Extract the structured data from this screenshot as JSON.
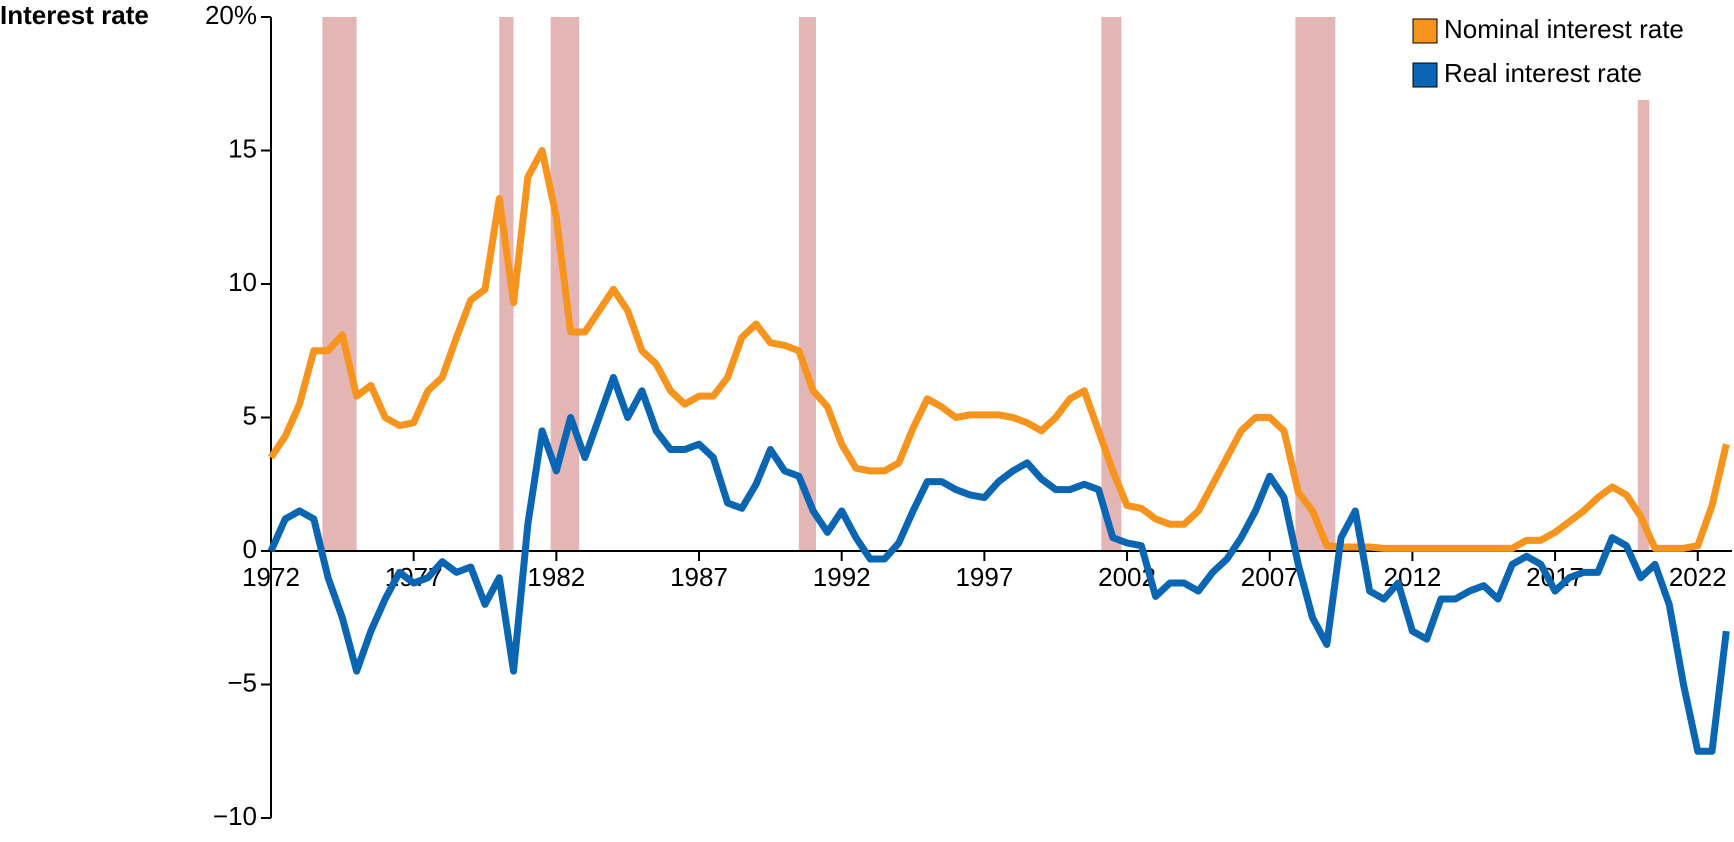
{
  "chart_data": {
    "type": "line",
    "y_label": "Interest rate",
    "x": [
      1972,
      1972.5,
      1973,
      1973.5,
      1974,
      1974.5,
      1975,
      1975.5,
      1976,
      1976.5,
      1977,
      1977.5,
      1978,
      1978.5,
      1979,
      1979.5,
      1980,
      1980.5,
      1981,
      1981.5,
      1982,
      1982.5,
      1983,
      1983.5,
      1984,
      1984.5,
      1985,
      1985.5,
      1986,
      1986.5,
      1987,
      1987.5,
      1988,
      1988.5,
      1989,
      1989.5,
      1990,
      1990.5,
      1991,
      1991.5,
      1992,
      1992.5,
      1993,
      1993.5,
      1994,
      1994.5,
      1995,
      1995.5,
      1996,
      1996.5,
      1997,
      1997.5,
      1998,
      1998.5,
      1999,
      1999.5,
      2000,
      2000.5,
      2001,
      2001.5,
      2002,
      2002.5,
      2003,
      2003.5,
      2004,
      2004.5,
      2005,
      2005.5,
      2006,
      2006.5,
      2007,
      2007.5,
      2008,
      2008.5,
      2009,
      2009.5,
      2010,
      2010.5,
      2011,
      2011.5,
      2012,
      2012.5,
      2013,
      2013.5,
      2014,
      2014.5,
      2015,
      2015.5,
      2016,
      2016.5,
      2017,
      2017.5,
      2018,
      2018.5,
      2019,
      2019.5,
      2020,
      2020.5,
      2021,
      2021.5,
      2022,
      2022.5,
      2023
    ],
    "series": [
      {
        "name": "Nominal interest rate",
        "color": "#f7941d",
        "values": [
          3.5,
          4.3,
          5.5,
          7.5,
          7.5,
          8.1,
          5.8,
          6.2,
          5.0,
          4.7,
          4.8,
          6.0,
          6.5,
          8.0,
          9.4,
          9.8,
          13.2,
          9.3,
          14.0,
          15.0,
          12.5,
          8.2,
          8.2,
          9.0,
          9.8,
          9.0,
          7.5,
          7.0,
          6.0,
          5.5,
          5.8,
          5.8,
          6.5,
          8.0,
          8.5,
          7.8,
          7.7,
          7.5,
          6.0,
          5.4,
          4.0,
          3.1,
          3.0,
          3.0,
          3.3,
          4.6,
          5.7,
          5.4,
          5.0,
          5.1,
          5.1,
          5.1,
          5.0,
          4.8,
          4.5,
          5.0,
          5.7,
          6.0,
          4.5,
          3.0,
          1.7,
          1.6,
          1.2,
          1.0,
          1.0,
          1.5,
          2.5,
          3.5,
          4.5,
          5.0,
          5.0,
          4.5,
          2.2,
          1.5,
          0.2,
          0.15,
          0.15,
          0.15,
          0.1,
          0.1,
          0.1,
          0.1,
          0.1,
          0.1,
          0.1,
          0.1,
          0.1,
          0.1,
          0.4,
          0.4,
          0.7,
          1.1,
          1.5,
          2.0,
          2.4,
          2.1,
          1.3,
          0.1,
          0.1,
          0.1,
          0.2,
          1.7,
          4.0
        ]
      },
      {
        "name": "Real interest rate",
        "color": "#0a66b2",
        "values": [
          0,
          1.2,
          1.5,
          1.2,
          -1.0,
          -2.5,
          -4.5,
          -3.0,
          -1.8,
          -0.8,
          -1.2,
          -1.0,
          -0.4,
          -0.8,
          -0.6,
          -2.0,
          -1.0,
          -4.5,
          1.0,
          4.5,
          3.0,
          5.0,
          3.5,
          5.0,
          6.5,
          5.0,
          6.0,
          4.5,
          3.8,
          3.8,
          4.0,
          3.5,
          1.8,
          1.6,
          2.5,
          3.8,
          3.0,
          2.8,
          1.5,
          0.7,
          1.5,
          0.5,
          -0.3,
          -0.3,
          0.3,
          1.5,
          2.6,
          2.6,
          2.3,
          2.1,
          2.0,
          2.6,
          3.0,
          3.3,
          2.7,
          2.3,
          2.3,
          2.5,
          2.3,
          0.5,
          0.3,
          0.2,
          -1.7,
          -1.2,
          -1.2,
          -1.5,
          -0.8,
          -0.3,
          0.5,
          1.5,
          2.8,
          2.0,
          -0.5,
          -2.5,
          -3.5,
          0.5,
          1.5,
          -1.5,
          -1.8,
          -1.2,
          -3.0,
          -3.3,
          -1.8,
          -1.8,
          -1.5,
          -1.3,
          -1.8,
          -0.5,
          -0.2,
          -0.5,
          -1.5,
          -1.0,
          -0.8,
          -0.8,
          0.5,
          0.2,
          -1.0,
          -0.5,
          -2.0,
          -5.0,
          -7.5,
          -7.5,
          -3.0
        ]
      }
    ],
    "recessions": [
      [
        1973.8,
        1975.0
      ],
      [
        1980.0,
        1980.5
      ],
      [
        1981.8,
        1982.8
      ],
      [
        1990.5,
        1991.1
      ],
      [
        2001.1,
        2001.8
      ],
      [
        2007.9,
        2009.3
      ],
      [
        2019.9,
        2020.3
      ]
    ],
    "recession_color": "#e4b5b5",
    "xlim": [
      1972,
      2023.2
    ],
    "xticks": [
      1972,
      1977,
      1982,
      1987,
      1992,
      1997,
      2002,
      2007,
      2012,
      2017,
      2022
    ],
    "ylim": [
      -10,
      20
    ],
    "yticks": [
      {
        "value": -10,
        "label": "−10"
      },
      {
        "value": -5,
        "label": "−5"
      },
      0,
      5,
      10,
      15,
      {
        "value": 20,
        "label": "20%"
      }
    ],
    "grid": false,
    "legend": "top-right"
  }
}
